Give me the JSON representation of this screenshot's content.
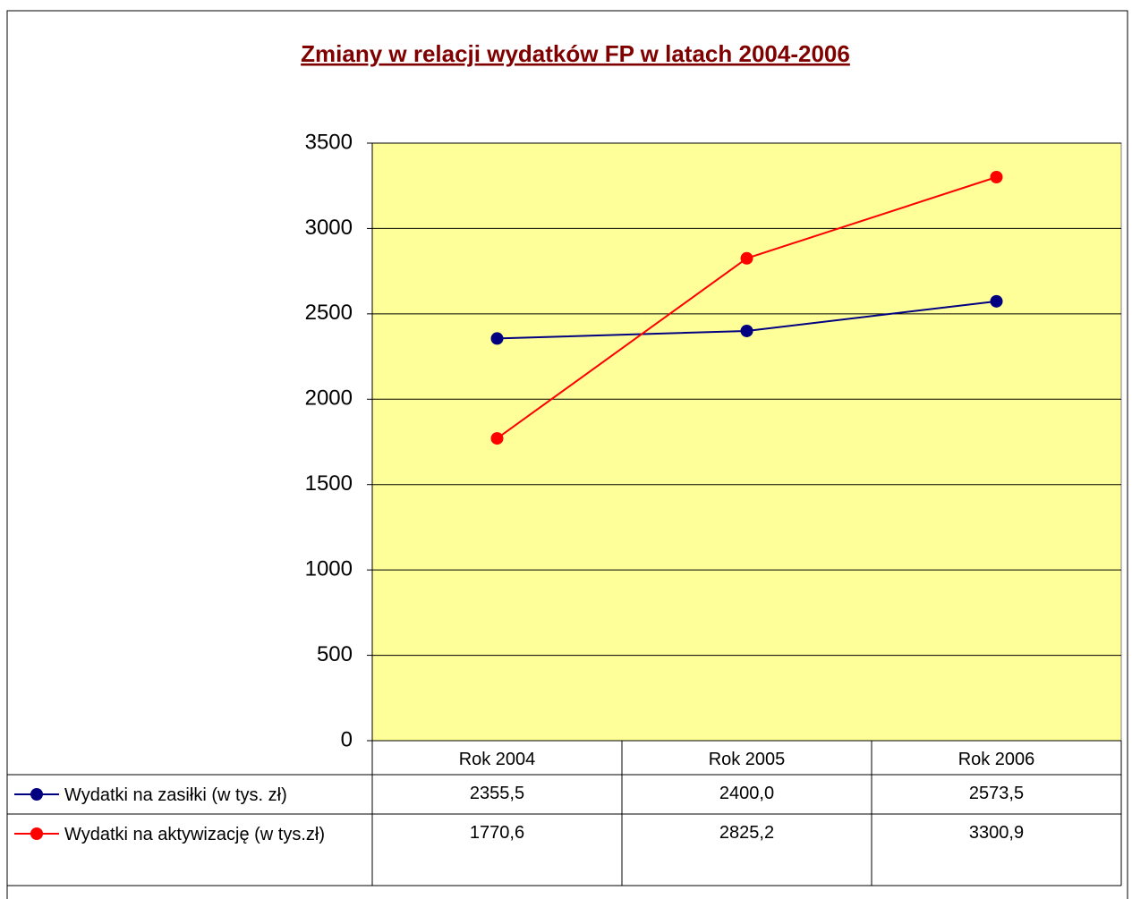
{
  "chart_data": {
    "type": "line",
    "title": "Zmiany w relacji wydatków FP w latach 2004-2006",
    "categories": [
      "Rok 2004",
      "Rok 2005",
      "Rok 2006"
    ],
    "series": [
      {
        "name": "Wydatki na zasiłki (w tys. zł)",
        "color": "#000080",
        "values": [
          2355.5,
          2400.0,
          2573.5
        ],
        "value_labels": [
          "2355,5",
          "2400,0",
          "2573,5"
        ]
      },
      {
        "name": "Wydatki na aktywizację (w tys.zł)",
        "color": "#ff0000",
        "values": [
          1770.6,
          2825.2,
          3300.9
        ],
        "value_labels": [
          "1770,6",
          "2825,2",
          "3300,9"
        ]
      }
    ],
    "ylim": [
      0,
      3500
    ],
    "yticks": [
      0,
      500,
      1000,
      1500,
      2000,
      2500,
      3000,
      3500
    ],
    "grid": true,
    "plot_background": "#ffff99"
  }
}
